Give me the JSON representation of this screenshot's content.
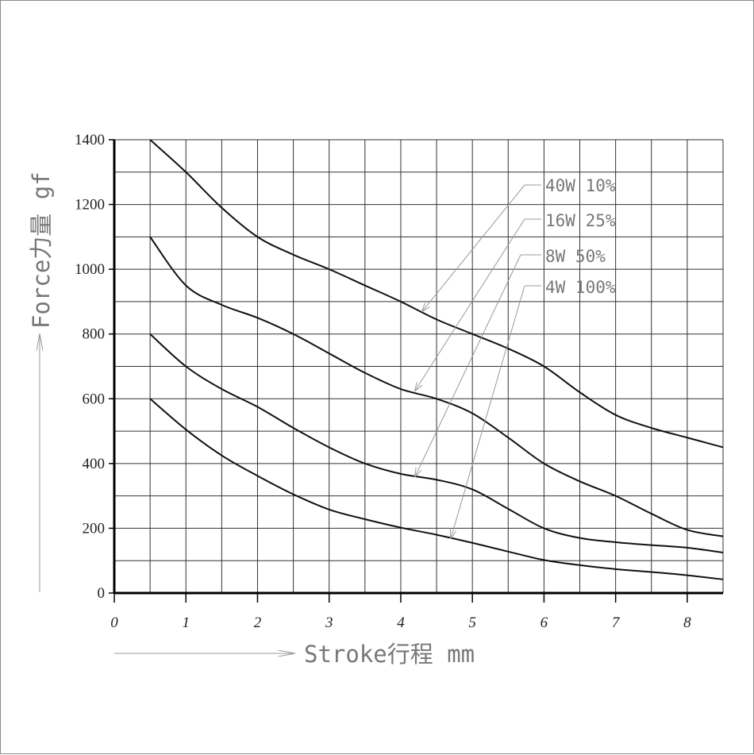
{
  "chart_data": {
    "type": "line",
    "xlabel": "Stroke行程 mm",
    "ylabel": "Force力量 gf",
    "xlim": [
      0,
      8.5
    ],
    "ylim": [
      0,
      1400
    ],
    "x_ticks": [
      "0",
      "1",
      "2",
      "3",
      "4",
      "5",
      "6",
      "7",
      "8"
    ],
    "y_ticks": [
      "0",
      "200",
      "400",
      "600",
      "800",
      "1000",
      "1200",
      "1400"
    ],
    "grid": true,
    "legend_position": "annotations with arrows, upper right",
    "series": [
      {
        "name": "40W 10%",
        "x": [
          0.5,
          1,
          1.5,
          2,
          2.5,
          3,
          3.5,
          4,
          4.5,
          5,
          5.5,
          6,
          6.5,
          7,
          7.5,
          8,
          8.5
        ],
        "y": [
          1400,
          1300,
          1190,
          1100,
          1045,
          1000,
          950,
          900,
          845,
          800,
          755,
          700,
          620,
          550,
          510,
          480,
          450
        ]
      },
      {
        "name": "16W 25%",
        "x": [
          0.5,
          1,
          1.5,
          2,
          2.5,
          3,
          3.5,
          4,
          4.5,
          5,
          5.5,
          6,
          6.5,
          7,
          7.5,
          8,
          8.5
        ],
        "y": [
          1100,
          950,
          890,
          850,
          800,
          740,
          680,
          630,
          600,
          555,
          480,
          400,
          345,
          300,
          245,
          195,
          175
        ]
      },
      {
        "name": "8W 50%",
        "x": [
          0.5,
          1,
          1.5,
          2,
          2.5,
          3,
          3.5,
          4,
          4.5,
          5,
          5.5,
          6,
          6.5,
          7,
          7.5,
          8,
          8.5
        ],
        "y": [
          800,
          700,
          630,
          575,
          510,
          450,
          400,
          368,
          350,
          320,
          260,
          200,
          170,
          157,
          148,
          140,
          125
        ]
      },
      {
        "name": "4W 100%",
        "x": [
          0.5,
          1,
          1.5,
          2,
          2.5,
          3,
          3.5,
          4,
          4.5,
          5,
          5.5,
          6,
          6.5,
          7,
          7.5,
          8,
          8.5
        ],
        "y": [
          600,
          505,
          425,
          362,
          305,
          258,
          228,
          202,
          180,
          155,
          128,
          102,
          86,
          74,
          65,
          55,
          42
        ]
      }
    ],
    "annotation_arrow_targets": [
      {
        "label": "40W 10%",
        "x": 4.3,
        "y": 870
      },
      {
        "label": "16W 25%",
        "x": 4.2,
        "y": 625
      },
      {
        "label": "8W 50%",
        "x": 4.2,
        "y": 360
      },
      {
        "label": "4W 100%",
        "x": 4.7,
        "y": 170
      }
    ]
  }
}
